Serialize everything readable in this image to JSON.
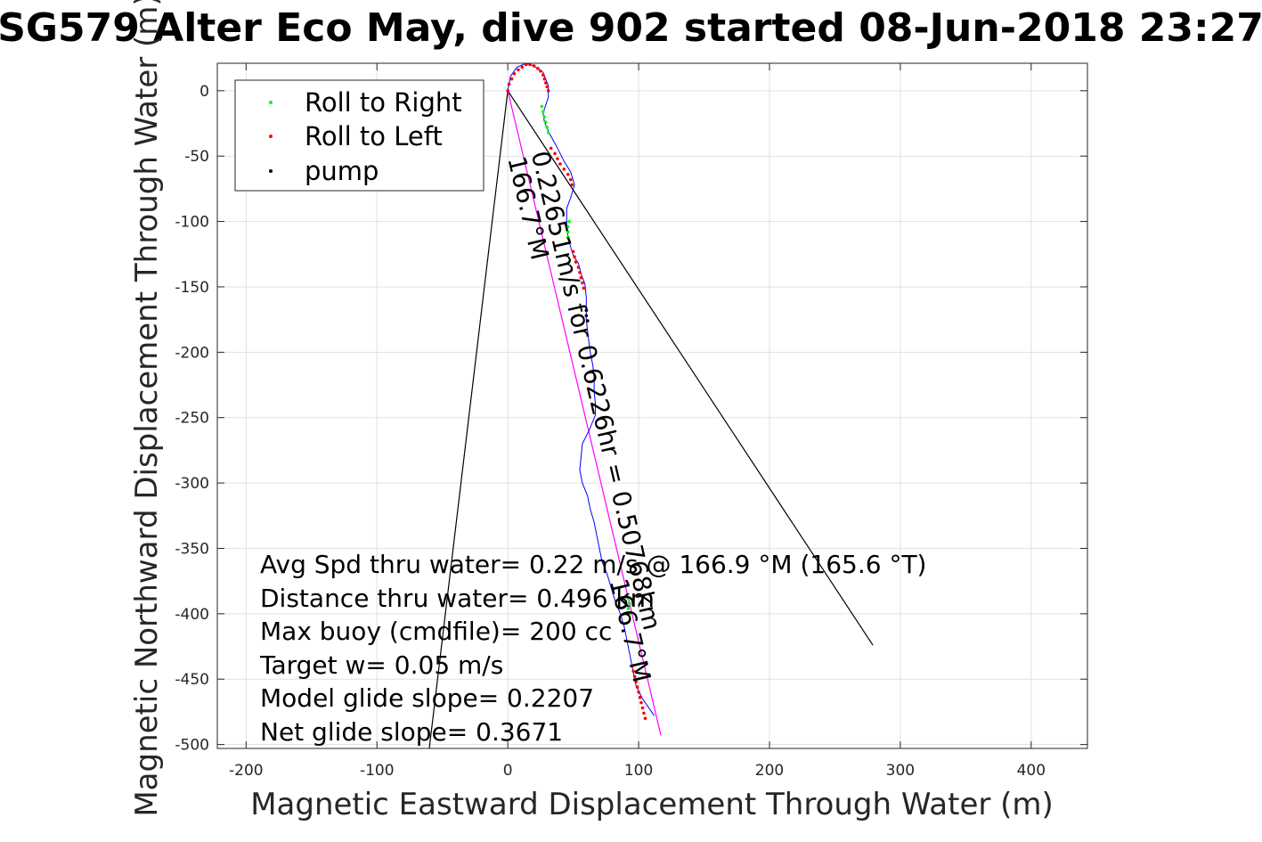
{
  "chart_data": {
    "type": "line",
    "title": "SG579 Alter Eco May, dive 902 started 08-Jun-2018 23:27",
    "xlabel": "Magnetic Eastward Displacement Through Water (m)",
    "ylabel": "Magnetic Northward Displacement Through Water (m)",
    "xlim": [
      -222,
      443
    ],
    "ylim": [
      -503,
      21
    ],
    "xticks": [
      -200,
      -100,
      0,
      100,
      200,
      300,
      400
    ],
    "yticks": [
      0,
      -50,
      -100,
      -150,
      -200,
      -250,
      -300,
      -350,
      -400,
      -450,
      -500
    ],
    "xtick_labels": [
      "-200",
      "-100",
      "0",
      "100",
      "200",
      "300",
      "400"
    ],
    "ytick_labels": [
      "0",
      "-50",
      "-100",
      "-150",
      "-200",
      "-250",
      "-300",
      "-350",
      "-400",
      "-450",
      "-500"
    ],
    "grid": true,
    "legend_position": "top-left",
    "legend": [
      {
        "name": "Roll to Right",
        "color": "#00ff00"
      },
      {
        "name": "Roll to Left",
        "color": "#ff0000"
      },
      {
        "name": "pump",
        "color": "#000000"
      }
    ],
    "track": {
      "color": "#0000ff",
      "x": [
        0,
        2,
        7,
        14,
        20,
        27,
        31,
        31,
        29,
        27,
        28,
        32,
        37,
        43,
        48,
        51,
        48,
        45,
        45,
        45,
        47,
        50,
        54,
        56,
        59,
        60,
        60,
        60,
        61,
        62,
        63,
        65,
        66,
        66,
        67,
        67,
        62,
        57,
        55,
        57,
        61,
        63,
        66,
        68,
        70,
        72,
        76,
        79,
        82,
        86,
        89,
        91,
        93,
        95,
        98,
        103,
        112
      ],
      "y": [
        0,
        11,
        18,
        21,
        19,
        14,
        4,
        -5,
        -11,
        -17,
        -24,
        -33,
        -42,
        -54,
        -62,
        -72,
        -82,
        -90,
        -98,
        -106,
        -116,
        -126,
        -132,
        -140,
        -148,
        -158,
        -166,
        -175,
        -184,
        -192,
        -200,
        -210,
        -220,
        -230,
        -240,
        -248,
        -260,
        -270,
        -290,
        -300,
        -310,
        -320,
        -330,
        -340,
        -350,
        -360,
        -370,
        -380,
        -390,
        -400,
        -410,
        -420,
        -430,
        -440,
        -455,
        -465,
        -478
      ]
    },
    "heading_line": {
      "color": "#ff00ff",
      "x": [
        0,
        117
      ],
      "y": [
        0,
        -493
      ]
    },
    "wedge_lines": [
      {
        "color": "#000000",
        "x": [
          -60,
          0,
          279
        ],
        "y": [
          -503,
          0,
          -424
        ]
      }
    ],
    "markers": {
      "roll_right": {
        "x": [
          26,
          27,
          28,
          29,
          30,
          31,
          47,
          46,
          46,
          46,
          92,
          93,
          92,
          93
        ],
        "y": [
          -12,
          -16,
          -20,
          -24,
          -28,
          -32,
          -100,
          -104,
          -108,
          -112,
          -388,
          -392,
          -396,
          -400
        ]
      },
      "roll_left": {
        "x": [
          0,
          1,
          3,
          5,
          8,
          11,
          14,
          17,
          20,
          23,
          25,
          27,
          28,
          29,
          30,
          31,
          33,
          36,
          38,
          40,
          43,
          46,
          48,
          49,
          50,
          51,
          52,
          54,
          55,
          56,
          57,
          58,
          95,
          96,
          97,
          98,
          99,
          100,
          101,
          102,
          103,
          104,
          105
        ],
        "y": [
          0,
          5,
          9,
          13,
          16,
          18,
          20,
          20,
          19,
          17,
          15,
          12,
          9,
          6,
          3,
          0,
          -44,
          -48,
          -52,
          -56,
          -60,
          -64,
          -68,
          -72,
          -123,
          -127,
          -131,
          -135,
          -139,
          -143,
          -147,
          -151,
          -440,
          -444,
          -448,
          -452,
          -456,
          -460,
          -464,
          -468,
          -472,
          -476,
          -480
        ]
      },
      "pump": {
        "x": [
          60,
          60,
          61
        ],
        "y": [
          -168,
          -172,
          -176
        ]
      }
    },
    "rotated_labels": [
      {
        "text": "0.22651m/s for 0.6226hr = 0.50768km",
        "x": 18,
        "y": -48,
        "angle_deg": 76.7
      },
      {
        "text": "166.7°M",
        "x": 0,
        "y": -52,
        "angle_deg": 76.7
      },
      {
        "text": "166.7°M",
        "x": 78,
        "y": -375,
        "angle_deg": 76.7
      }
    ],
    "annotations": [
      "Avg Spd thru water=  0.22 m/s @ 166.9 °M (165.6 °T)",
      "Distance thru water=  0.496 km",
      "Max buoy (cmdfile)= 200 cc",
      "Target w= 0.05 m/s",
      "Model glide slope= 0.2207",
      "Net glide slope= 0.3671"
    ]
  }
}
